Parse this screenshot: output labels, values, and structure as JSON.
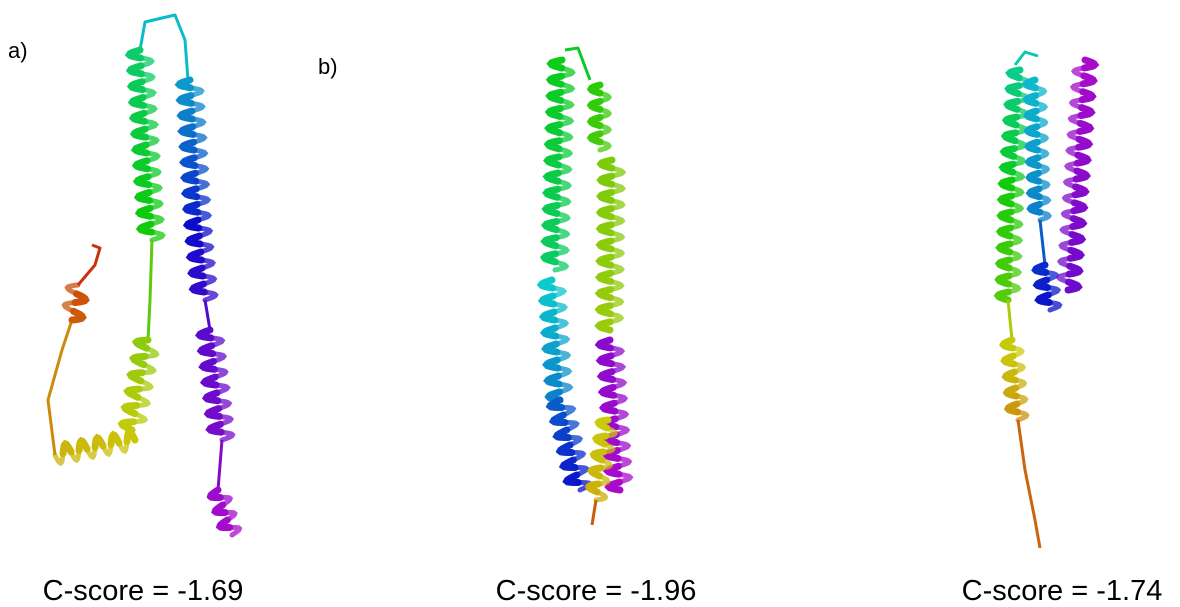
{
  "panels": [
    {
      "label": "a)",
      "caption": "C-score = -1.69"
    },
    {
      "label": "b)",
      "caption": "C-score = -1.96"
    },
    {
      "caption": "C-score = -1.74"
    }
  ]
}
